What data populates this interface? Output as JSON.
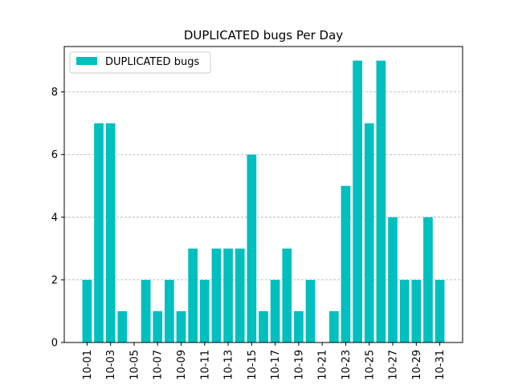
{
  "chart_data": {
    "type": "bar",
    "title": "DUPLICATED bugs Per Day",
    "xlabel": "",
    "ylabel": "",
    "categories": [
      "10-01",
      "10-02",
      "10-03",
      "10-04",
      "10-05",
      "10-06",
      "10-07",
      "10-08",
      "10-09",
      "10-10",
      "10-11",
      "10-12",
      "10-13",
      "10-14",
      "10-15",
      "10-16",
      "10-17",
      "10-18",
      "10-19",
      "10-20",
      "10-21",
      "10-22",
      "10-23",
      "10-24",
      "10-25",
      "10-26",
      "10-27",
      "10-28",
      "10-29",
      "10-30",
      "10-31"
    ],
    "series": [
      {
        "name": "DUPLICATED bugs",
        "color": "#00BFBF",
        "values": [
          2,
          7,
          7,
          1,
          0,
          2,
          1,
          2,
          1,
          3,
          2,
          3,
          3,
          3,
          6,
          1,
          2,
          3,
          1,
          2,
          0,
          1,
          5,
          9,
          7,
          9,
          4,
          2,
          2,
          4,
          2
        ]
      }
    ],
    "xtick_labels": [
      "10-01",
      "10-03",
      "10-05",
      "10-07",
      "10-09",
      "10-11",
      "10-13",
      "10-15",
      "10-17",
      "10-19",
      "10-21",
      "10-23",
      "10-25",
      "10-27",
      "10-29",
      "10-31"
    ],
    "yticks": [
      0,
      2,
      4,
      6,
      8
    ],
    "ylim": [
      0,
      9.45
    ],
    "grid": "y-dashed",
    "legend_position": "top-left"
  }
}
